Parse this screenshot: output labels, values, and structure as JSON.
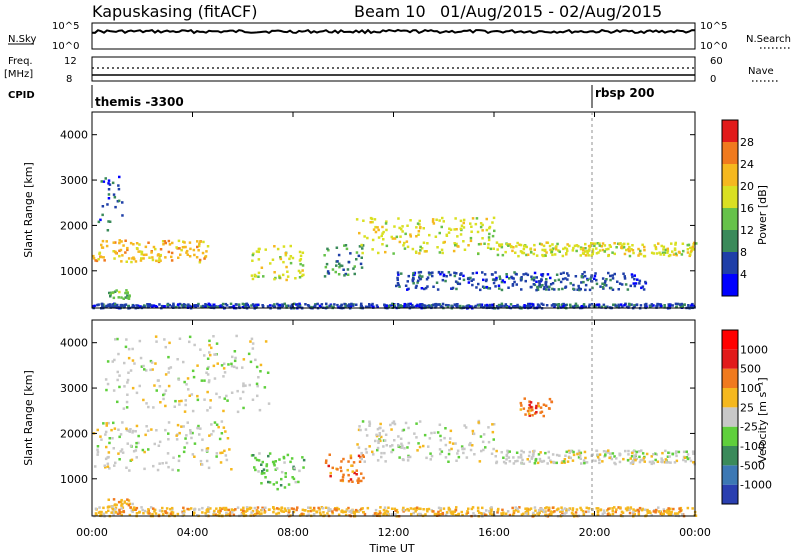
{
  "header": {
    "title": "Kapuskasing (fitACF)",
    "beam": "Beam 10",
    "daterange": "01/Aug/2015 - 02/Aug/2015"
  },
  "panels": {
    "nsky": {
      "label": "N.Sky",
      "ticks_left": [
        "10^5",
        "10^0"
      ],
      "ticks_right": [
        "10^5",
        "10^0"
      ],
      "right_label": "N.Search"
    },
    "freq": {
      "label1": "Freq.",
      "label2": "[MHz]",
      "ticks_left": [
        "12",
        "8"
      ],
      "ticks_right": [
        "60",
        "0"
      ],
      "right_label": "Nave"
    },
    "cpid": {
      "label": "CPID",
      "marker1": "themis -3300",
      "marker2": "rbsp 200"
    }
  },
  "colorbars": {
    "power": {
      "label": "Power [dB]",
      "ticks": [
        "28",
        "24",
        "20",
        "16",
        "12",
        "8",
        "4"
      ],
      "colors": [
        "#0000ff",
        "#1f3fa8",
        "#3a8a5a",
        "#66c24a",
        "#d9e022",
        "#f5b81f",
        "#f07a1e",
        "#e21b1b"
      ]
    },
    "velocity": {
      "label": "Velocity [m s⁻¹]",
      "ticks": [
        "1000",
        "500",
        "100",
        "25",
        "-25",
        "-100",
        "-500",
        "-1000"
      ],
      "colors": [
        "#2a3fb0",
        "#3c78b4",
        "#3a8a5a",
        "#5fcf3c",
        "#c8c8c8",
        "#f5b81f",
        "#f07a1e",
        "#e21b1b",
        "#ff0000"
      ]
    }
  },
  "chart_data": [
    {
      "type": "heatmap",
      "title": "Power",
      "ylabel": "Slant Range [km]",
      "xlabel": "Time UT",
      "x_ticks": [
        "00:00",
        "04:00",
        "08:00",
        "12:00",
        "16:00",
        "20:00",
        "00:00"
      ],
      "y_ticks": [
        "1000",
        "2000",
        "3000",
        "4000"
      ],
      "xlim_hours": [
        0,
        24
      ],
      "ylim_km": [
        180,
        4500
      ],
      "scatter_bands": [
        {
          "t0": 0.0,
          "t1": 4.6,
          "r0": 1200,
          "r1": 1700,
          "color_index": 5
        },
        {
          "t0": 0.2,
          "t1": 1.2,
          "r0": 1900,
          "r1": 3100,
          "color_index": 1
        },
        {
          "t0": 0.6,
          "t1": 1.5,
          "r0": 400,
          "r1": 600,
          "color_index": 3
        },
        {
          "t0": 6.3,
          "t1": 8.4,
          "r0": 800,
          "r1": 1600,
          "color_index": 4
        },
        {
          "t0": 9.2,
          "t1": 10.8,
          "r0": 900,
          "r1": 1600,
          "color_index": 2
        },
        {
          "t0": 10.5,
          "t1": 16.0,
          "r0": 1400,
          "r1": 2200,
          "color_index": 4
        },
        {
          "t0": 16.0,
          "t1": 24.0,
          "r0": 1350,
          "r1": 1650,
          "color_index": 4
        },
        {
          "t0": 0.0,
          "t1": 24.0,
          "r0": 200,
          "r1": 300,
          "color_index": 1
        },
        {
          "t0": 12.0,
          "t1": 22.0,
          "r0": 600,
          "r1": 1000,
          "color_index": 1
        }
      ]
    },
    {
      "type": "heatmap",
      "title": "Velocity",
      "ylabel": "Slant Range [km]",
      "xlabel": "Time UT",
      "x_ticks": [
        "00:00",
        "04:00",
        "08:00",
        "12:00",
        "16:00",
        "20:00",
        "00:00"
      ],
      "y_ticks": [
        "1000",
        "2000",
        "3000",
        "4000"
      ],
      "xlim_hours": [
        0,
        24
      ],
      "ylim_km": [
        180,
        4500
      ],
      "scatter_bands": [
        {
          "t0": 0.0,
          "t1": 5.5,
          "r0": 1200,
          "r1": 2300,
          "color_index": 4
        },
        {
          "t0": 0.5,
          "t1": 7.0,
          "r0": 2500,
          "r1": 4200,
          "color_index": 4
        },
        {
          "t0": 6.3,
          "t1": 8.4,
          "r0": 800,
          "r1": 1600,
          "color_index": 3
        },
        {
          "t0": 0.6,
          "t1": 1.6,
          "r0": 380,
          "r1": 580,
          "color_index": 5
        },
        {
          "t0": 9.2,
          "t1": 10.8,
          "r0": 900,
          "r1": 1600,
          "color_index": 6
        },
        {
          "t0": 10.5,
          "t1": 16.0,
          "r0": 1400,
          "r1": 2300,
          "color_index": 4
        },
        {
          "t0": 16.0,
          "t1": 24.0,
          "r0": 1350,
          "r1": 1650,
          "color_index": 4
        },
        {
          "t0": 0.0,
          "t1": 24.0,
          "r0": 200,
          "r1": 400,
          "color_index": 5
        },
        {
          "t0": 17.0,
          "t1": 18.3,
          "r0": 2400,
          "r1": 2800,
          "color_index": 6
        }
      ]
    }
  ]
}
